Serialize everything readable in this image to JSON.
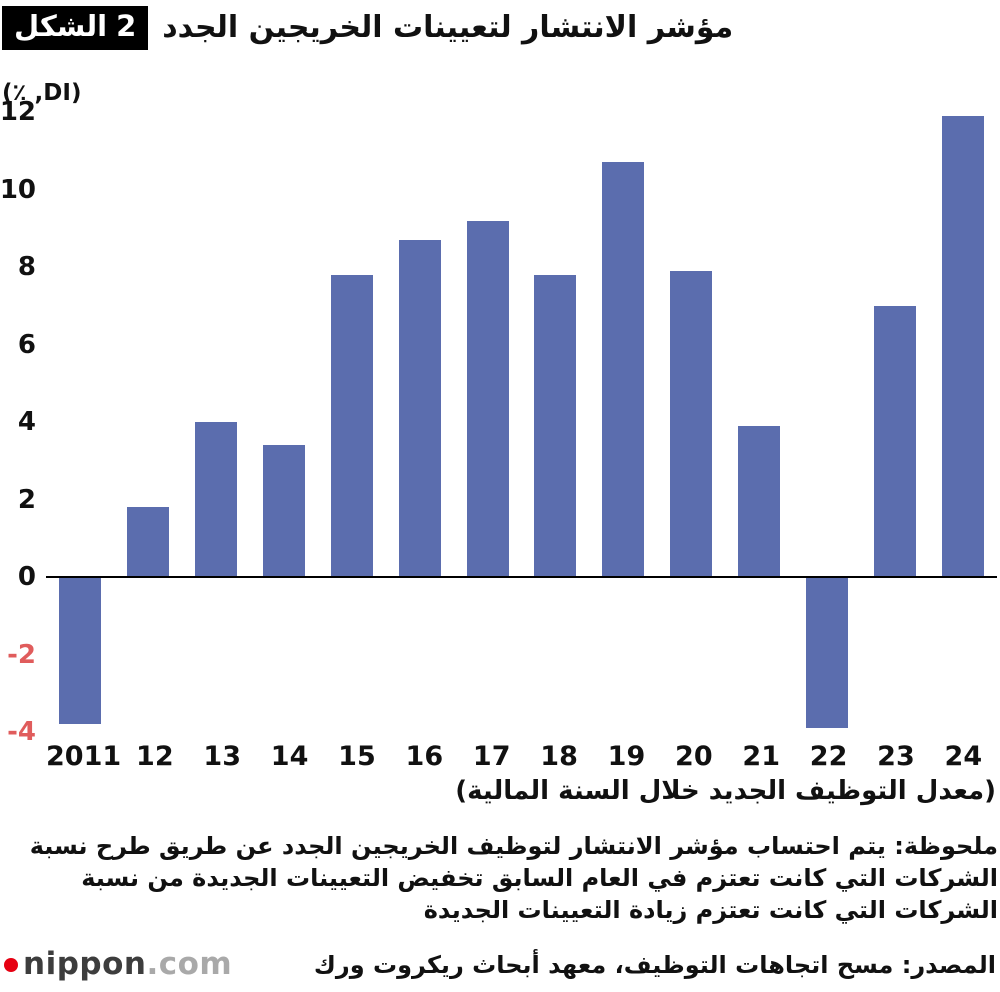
{
  "header": {
    "badge_word": "الشكل",
    "badge_number": "2",
    "title": "مؤشر الانتشار لتعيينات الخريجين الجدد"
  },
  "chart_data": {
    "type": "bar",
    "title": "مؤشر الانتشار لتعيينات الخريجين الجدد",
    "unit_label": "(٪ ,DI)",
    "ylabel": "DI, %",
    "xlabel": "(معدل التوظيف الجديد خلال السنة المالية)",
    "categories": [
      "2011",
      "12",
      "13",
      "14",
      "15",
      "16",
      "17",
      "18",
      "19",
      "20",
      "21",
      "22",
      "23",
      "24"
    ],
    "values": [
      -3.8,
      1.8,
      4.0,
      3.4,
      7.8,
      8.7,
      9.2,
      7.8,
      10.7,
      7.9,
      3.9,
      -3.9,
      7.0,
      11.9
    ],
    "y_ticks": [
      12,
      10,
      8,
      6,
      4,
      2,
      0,
      -2,
      -4
    ],
    "ylim": [
      -4,
      12
    ],
    "grid": false,
    "legend": "none",
    "bar_color": "#5b6dae",
    "negative_tick_color": "#e05c5c",
    "axis_line_color": "#000000"
  },
  "footer": {
    "note": "ملحوظة: يتم احتساب مؤشر الانتشار لتوظيف الخريجين الجدد عن طريق طرح نسبة الشركات التي كانت تعتزم في العام السابق تخفيض التعيينات الجديدة من نسبة الشركات التي كانت تعتزم زيادة التعيينات الجديدة",
    "source": "المصدر: مسح اتجاهات التوظيف، معهد أبحاث ريكروت ورك",
    "logo": {
      "part1": "nippon",
      "part2": ".com",
      "dot_color": "#e60012"
    }
  }
}
